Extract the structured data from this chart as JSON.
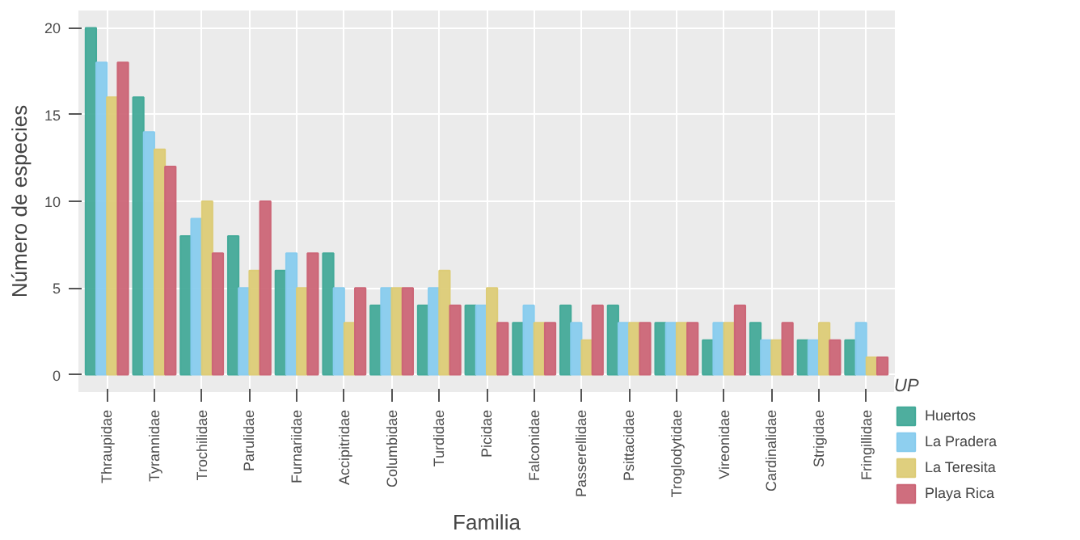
{
  "chart_data": {
    "type": "bar",
    "xlabel": "Familia",
    "ylabel": "Número de especies",
    "legend_title": "UP",
    "categories": [
      "Thraupidae",
      "Tyrannidae",
      "Trochilidae",
      "Parulidae",
      "Furnariidae",
      "Accipitridae",
      "Columbidae",
      "Turdidae",
      "Picidae",
      "Falconidae",
      "Passerellidae",
      "Psittacidae",
      "Troglodytidae",
      "Vireonidae",
      "Cardinalidae",
      "Strigidae",
      "Fringillidae"
    ],
    "series": [
      {
        "name": "Huertos",
        "color": "#44aa99",
        "values": [
          20,
          16,
          8,
          8,
          6,
          7,
          4,
          4,
          4,
          3,
          4,
          4,
          3,
          2,
          3,
          2,
          2
        ]
      },
      {
        "name": "La Pradera",
        "color": "#88ccee",
        "values": [
          18,
          14,
          9,
          5,
          7,
          5,
          5,
          5,
          4,
          4,
          3,
          3,
          3,
          3,
          2,
          2,
          3
        ]
      },
      {
        "name": "La Teresita",
        "color": "#ddcc77",
        "values": [
          16,
          13,
          10,
          6,
          5,
          3,
          5,
          6,
          5,
          3,
          2,
          3,
          3,
          3,
          2,
          3,
          1
        ]
      },
      {
        "name": "Playa Rica",
        "color": "#cc6677",
        "values": [
          18,
          12,
          7,
          10,
          7,
          5,
          5,
          4,
          3,
          3,
          4,
          3,
          3,
          4,
          3,
          2,
          1
        ]
      }
    ],
    "ylim": [
      -1,
      21
    ],
    "yticks": [
      0,
      5,
      10,
      15,
      20
    ],
    "grid": true,
    "legend": "right"
  }
}
